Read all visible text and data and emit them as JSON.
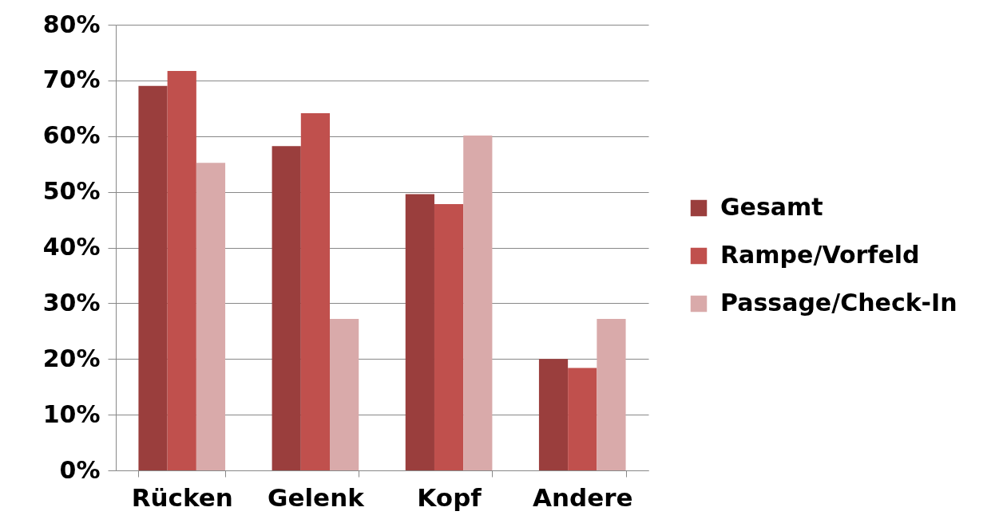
{
  "chart_data": {
    "type": "bar",
    "categories": [
      "Rücken",
      "Gelenk",
      "Kopf",
      "Andere"
    ],
    "series": [
      {
        "name": "Gesamt",
        "color": "#9a3e3d",
        "values": [
          69,
          58.2,
          49.6,
          20
        ]
      },
      {
        "name": "Rampe/Vorfeld",
        "color": "#c0504d",
        "values": [
          71.7,
          64.1,
          47.8,
          18.4
        ]
      },
      {
        "name": "Passage/Check-In",
        "color": "#d9aaaa",
        "values": [
          55.2,
          27.2,
          60.1,
          27.2
        ]
      }
    ],
    "ylim": [
      0,
      80
    ],
    "yticks": [
      {
        "value": 0,
        "label": "0%"
      },
      {
        "value": 10,
        "label": "10%"
      },
      {
        "value": 20,
        "label": "20%"
      },
      {
        "value": 30,
        "label": "30%"
      },
      {
        "value": 40,
        "label": "40%"
      },
      {
        "value": 50,
        "label": "50%"
      },
      {
        "value": 60,
        "label": "60%"
      },
      {
        "value": 70,
        "label": "70%"
      },
      {
        "value": 80,
        "label": "80%"
      }
    ],
    "grid": "y",
    "legend": "right"
  }
}
